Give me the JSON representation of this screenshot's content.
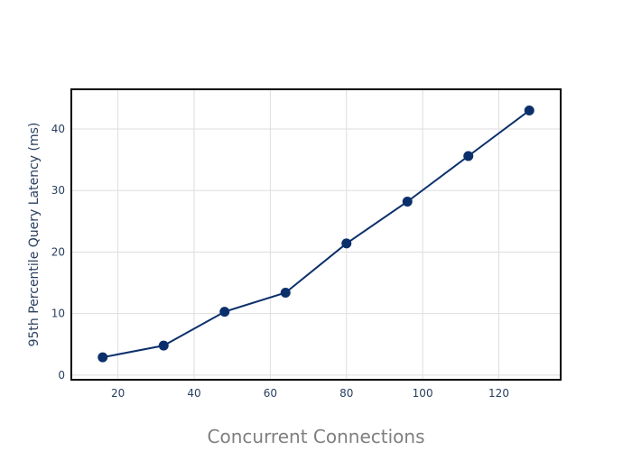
{
  "chart_data": {
    "type": "line",
    "title": "",
    "xlabel": "Concurrent Connections",
    "ylabel": "95th Percentile Query Latency (ms)",
    "xlim": [
      8,
      136
    ],
    "ylim": [
      -0.6,
      46.3
    ],
    "xticks": [
      20,
      40,
      60,
      80,
      100,
      120
    ],
    "yticks": [
      0,
      10,
      20,
      30,
      40
    ],
    "grid": true,
    "legend": "none",
    "series": [
      {
        "color": "#0b2f6b",
        "x": [
          16,
          32,
          48,
          64,
          80,
          96,
          112,
          128
        ],
        "y": [
          2.9,
          4.8,
          10.3,
          13.4,
          21.4,
          28.2,
          35.6,
          43.0
        ]
      }
    ]
  }
}
